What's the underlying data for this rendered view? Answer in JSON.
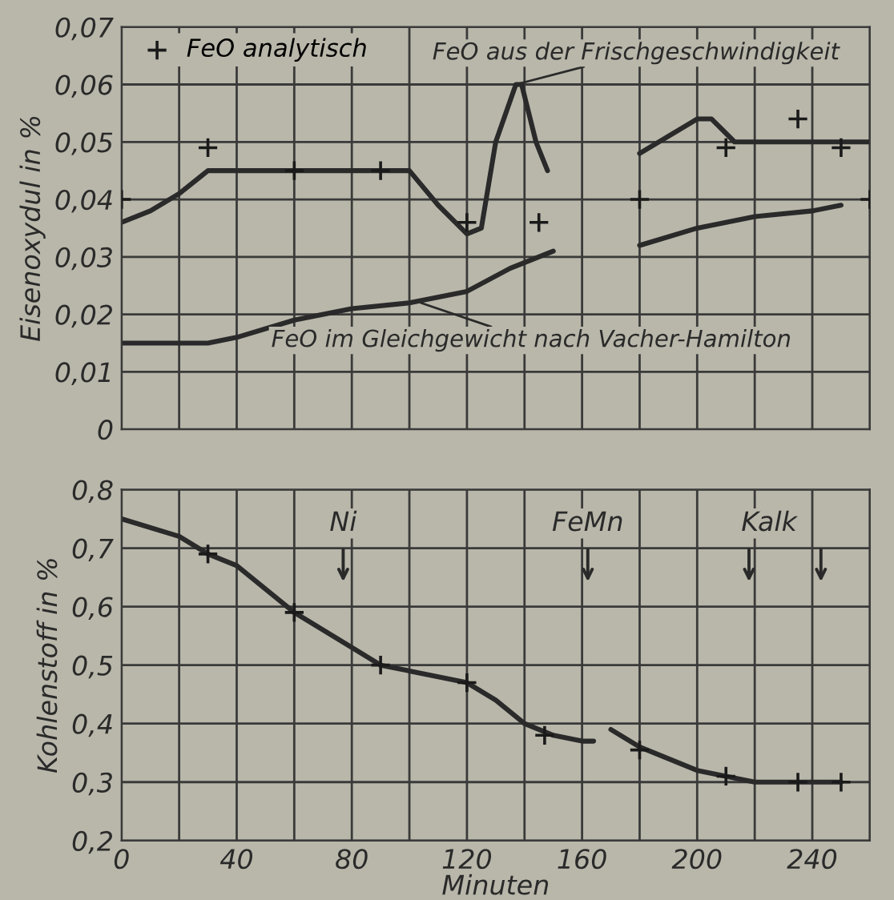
{
  "chart_data": [
    {
      "type": "line",
      "ylabel": "Eisenoxydul in %",
      "xlim": [
        0,
        260
      ],
      "xticks": [
        {
          "value": 0,
          "label": null
        },
        {
          "value": 20,
          "label": null
        },
        {
          "value": 40,
          "label": null
        },
        {
          "value": 60,
          "label": null
        },
        {
          "value": 80,
          "label": null
        },
        {
          "value": 100,
          "label": null
        },
        {
          "value": 120,
          "label": null
        },
        {
          "value": 140,
          "label": null
        },
        {
          "value": 160,
          "label": null
        },
        {
          "value": 180,
          "label": null
        },
        {
          "value": 200,
          "label": null
        },
        {
          "value": 220,
          "label": null
        },
        {
          "value": 240,
          "label": null
        },
        {
          "value": 260,
          "label": null
        }
      ],
      "ylim": [
        0,
        0.07
      ],
      "yticks": [
        {
          "value": 0,
          "label": "0"
        },
        {
          "value": 0.01,
          "label": "0,01"
        },
        {
          "value": 0.02,
          "label": "0,02"
        },
        {
          "value": 0.03,
          "label": "0,03"
        },
        {
          "value": 0.04,
          "label": "0,04"
        },
        {
          "value": 0.05,
          "label": "0,05"
        },
        {
          "value": 0.06,
          "label": "0,06"
        },
        {
          "value": 0.07,
          "label": "0,07"
        }
      ],
      "tick_labels": "y",
      "grid": true,
      "legend": "top left",
      "line_style": "solid",
      "series": [
        {
          "color": "#2a2a2a",
          "marker": "none",
          "x": [
            0,
            10,
            20,
            30,
            40,
            60,
            80,
            100,
            110,
            120,
            125,
            130,
            137,
            139,
            144,
            148,
            160,
            180,
            190,
            200,
            205,
            213,
            220,
            240,
            260
          ],
          "values": [
            0.036,
            0.038,
            0.041,
            0.045,
            0.045,
            0.045,
            0.045,
            0.045,
            0.039,
            0.034,
            0.035,
            0.05,
            0.06,
            0.06,
            0.05,
            0.045,
            null,
            0.048,
            0.051,
            0.054,
            0.054,
            0.05,
            0.05,
            0.05,
            0.05
          ]
        },
        {
          "color": "#2a2a2a",
          "marker": "none",
          "x": [
            0,
            20,
            30,
            40,
            60,
            80,
            100,
            120,
            135,
            150,
            165,
            180,
            200,
            210,
            220,
            240,
            250
          ],
          "values": [
            0.015,
            0.015,
            0.015,
            0.016,
            0.019,
            0.021,
            0.022,
            0.024,
            0.028,
            0.031,
            null,
            0.032,
            0.035,
            0.036,
            0.037,
            0.038,
            0.039
          ]
        },
        {
          "type": "scatter",
          "name": "FeO analytisch",
          "color": "#1a1a1a",
          "marker": "cross",
          "x": [
            0,
            30,
            60,
            90,
            120,
            145,
            180,
            210,
            235,
            250,
            260
          ],
          "values": [
            0.04,
            0.049,
            0.045,
            0.045,
            0.036,
            0.036,
            0.04,
            0.049,
            0.054,
            0.049,
            0.04
          ]
        }
      ],
      "annotations": [
        {
          "text": "FeO aus der Frischgeschwindigkeit",
          "x": 137,
          "y": 0.06
        },
        {
          "text": "FeO im Gleichgewicht nach Vacher-Hamilton",
          "x": 104,
          "y": 0.022
        }
      ]
    },
    {
      "type": "line",
      "xlabel": "Minuten",
      "ylabel": "Kohlenstoff in %",
      "xlim": [
        0,
        260
      ],
      "xticks": [
        0,
        {
          "value": 20,
          "label": null
        },
        40,
        {
          "value": 60,
          "label": null
        },
        80,
        {
          "value": 100,
          "label": null
        },
        120,
        {
          "value": 140,
          "label": null
        },
        160,
        {
          "value": 180,
          "label": null
        },
        200,
        {
          "value": 220,
          "label": null
        },
        240,
        {
          "value": 260,
          "label": null
        }
      ],
      "ylim": [
        0.2,
        0.8
      ],
      "yticks": [
        {
          "value": 0.2,
          "label": "0,2"
        },
        {
          "value": 0.3,
          "label": "0,3"
        },
        {
          "value": 0.4,
          "label": "0,4"
        },
        {
          "value": 0.5,
          "label": "0,5"
        },
        {
          "value": 0.6,
          "label": "0,6"
        },
        {
          "value": 0.7,
          "label": "0,7"
        },
        {
          "value": 0.8,
          "label": "0,8"
        }
      ],
      "grid": true,
      "line_style": "solid",
      "series": [
        {
          "color": "#2a2a2a",
          "marker": "none",
          "x": [
            0,
            20,
            30,
            40,
            60,
            80,
            90,
            100,
            120,
            130,
            140,
            150,
            160,
            164,
            167,
            170,
            180,
            200,
            210,
            220,
            235,
            250
          ],
          "values": [
            0.75,
            0.72,
            0.69,
            0.67,
            0.59,
            0.53,
            0.5,
            0.49,
            0.47,
            0.44,
            0.4,
            0.38,
            0.37,
            0.37,
            null,
            0.39,
            0.36,
            0.32,
            0.31,
            0.3,
            0.3,
            0.3
          ]
        },
        {
          "type": "scatter",
          "color": "#1a1a1a",
          "marker": "cross",
          "x": [
            30,
            60,
            90,
            120,
            147,
            180,
            210,
            235,
            250
          ],
          "values": [
            0.69,
            0.59,
            0.5,
            0.47,
            0.38,
            0.355,
            0.31,
            0.3,
            0.3
          ]
        }
      ],
      "annotations": [
        "Ni",
        "FeMn",
        "Kalk"
      ]
    }
  ]
}
